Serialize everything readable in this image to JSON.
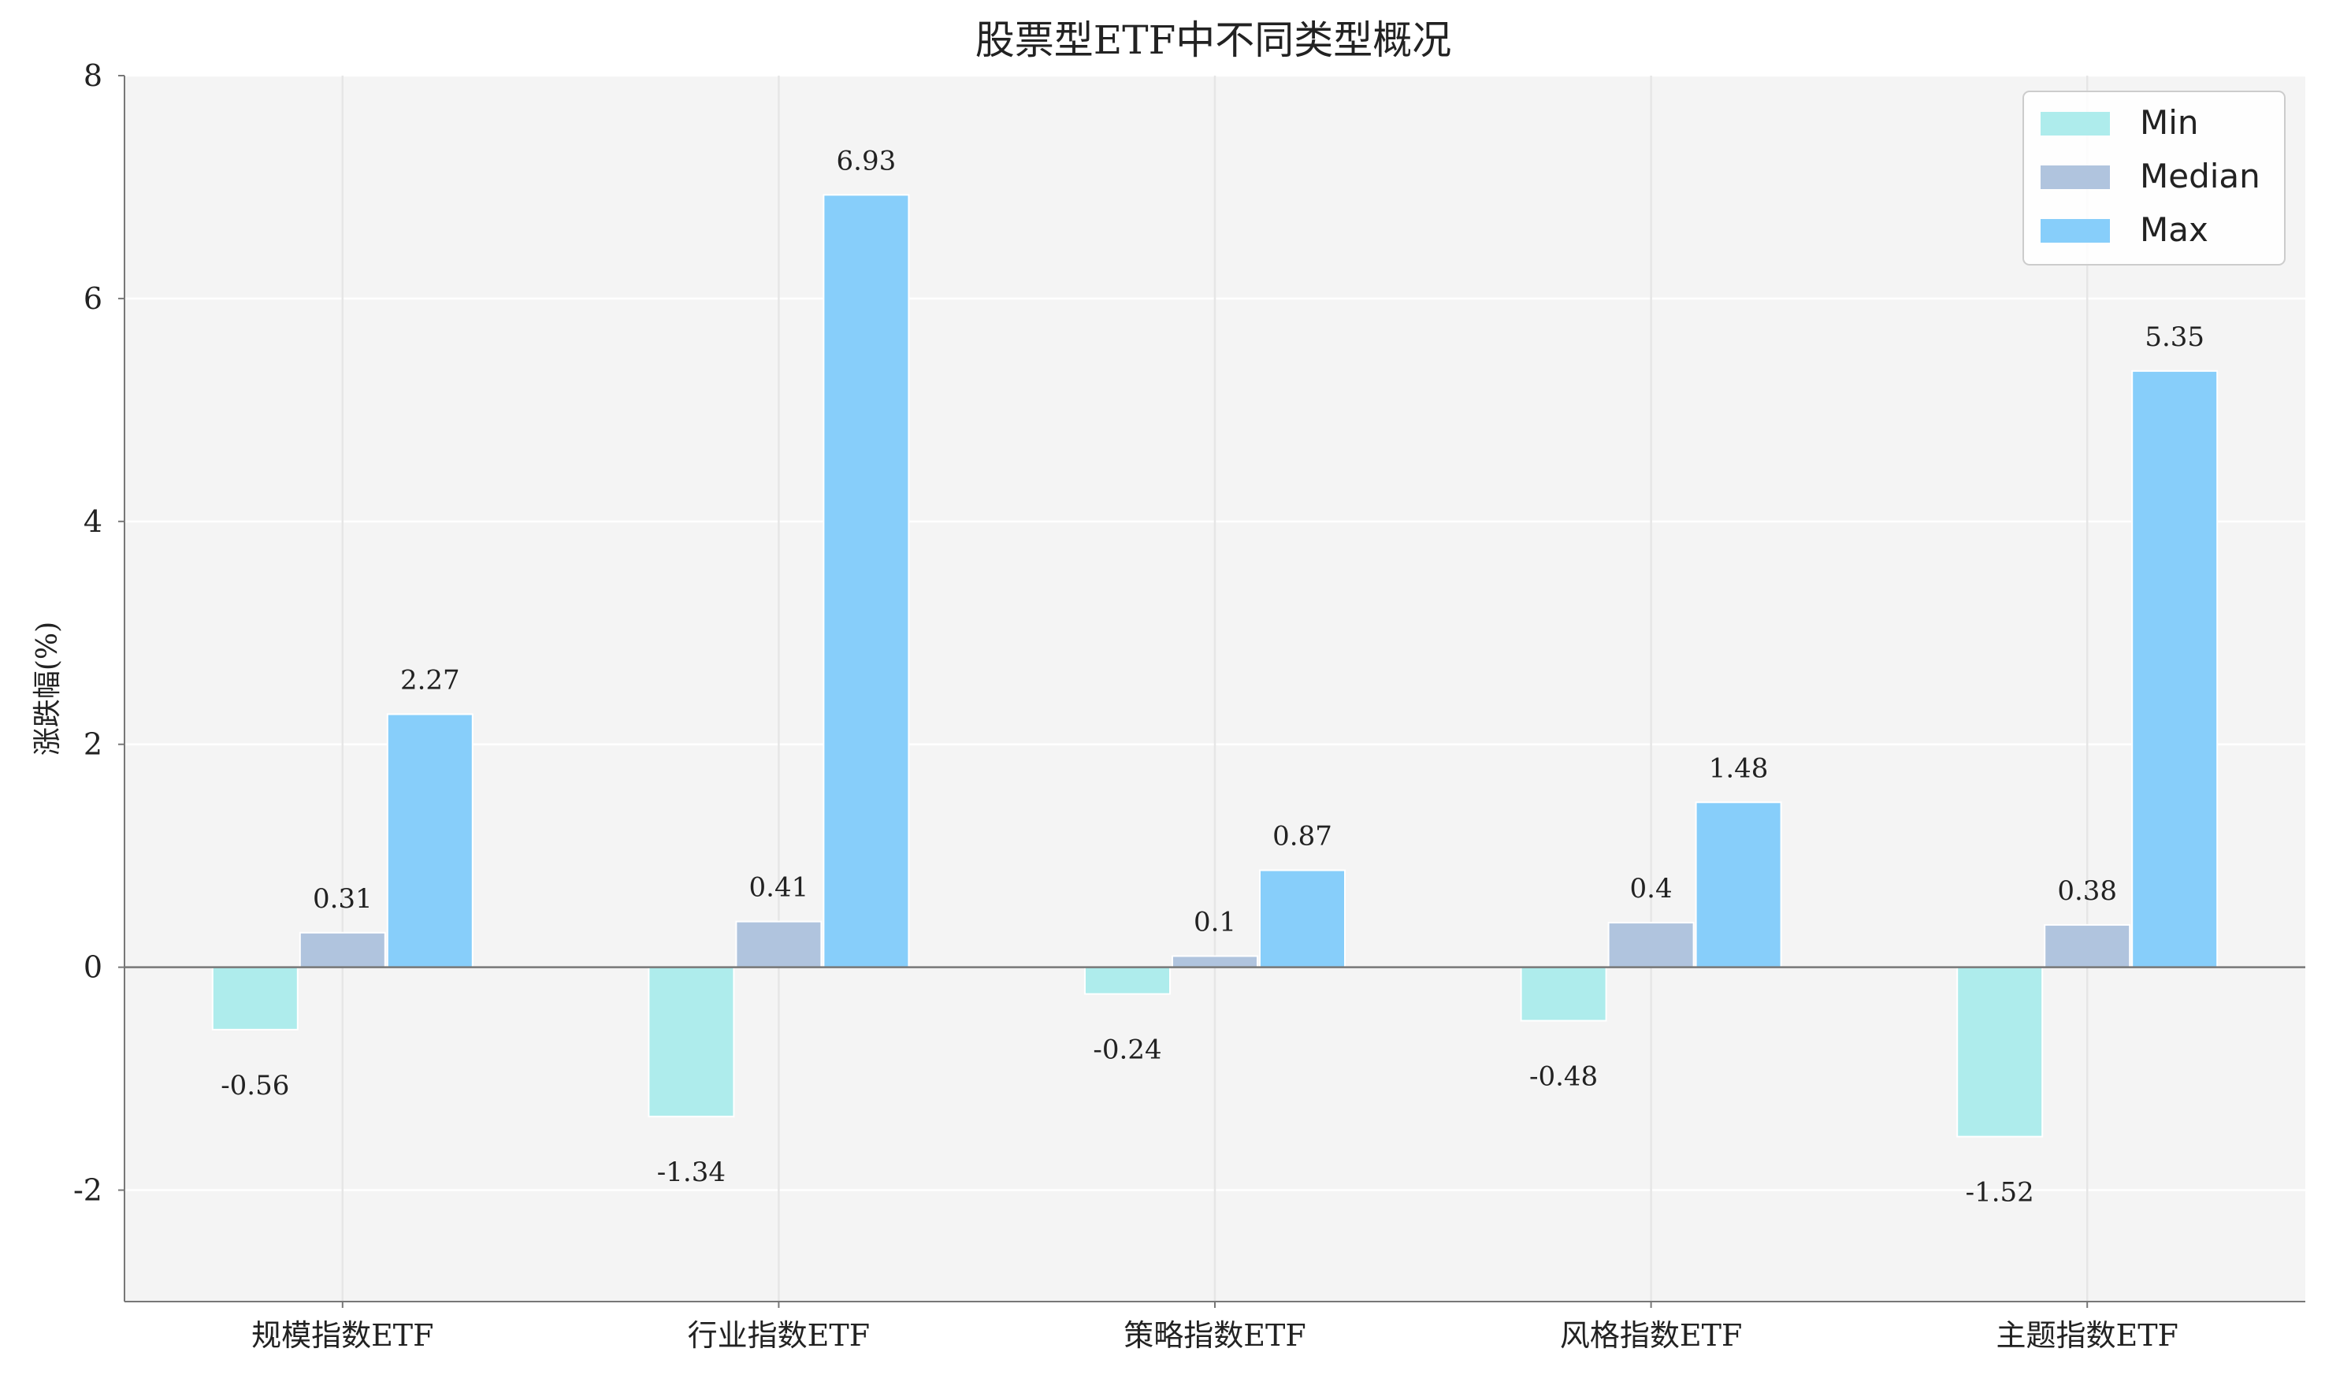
{
  "chart_data": {
    "type": "bar",
    "title": "股票型ETF中不同类型概况",
    "xlabel": "",
    "ylabel": "涨跌幅(%)",
    "ylim": [
      -3,
      8
    ],
    "yticks": [
      -2,
      0,
      2,
      4,
      6,
      8
    ],
    "categories": [
      "规模指数ETF",
      "行业指数ETF",
      "策略指数ETF",
      "风格指数ETF",
      "主题指数ETF"
    ],
    "series": [
      {
        "name": "Min",
        "color": "#aeecec",
        "values": [
          -0.56,
          -1.34,
          -0.24,
          -0.48,
          -1.52
        ]
      },
      {
        "name": "Median",
        "color": "#b0c4de",
        "values": [
          0.31,
          0.41,
          0.1,
          0.4,
          0.38
        ]
      },
      {
        "name": "Max",
        "color": "#87cefa",
        "values": [
          2.27,
          6.93,
          0.87,
          1.48,
          5.35
        ]
      }
    ],
    "grid": true,
    "legend": "top-right"
  }
}
